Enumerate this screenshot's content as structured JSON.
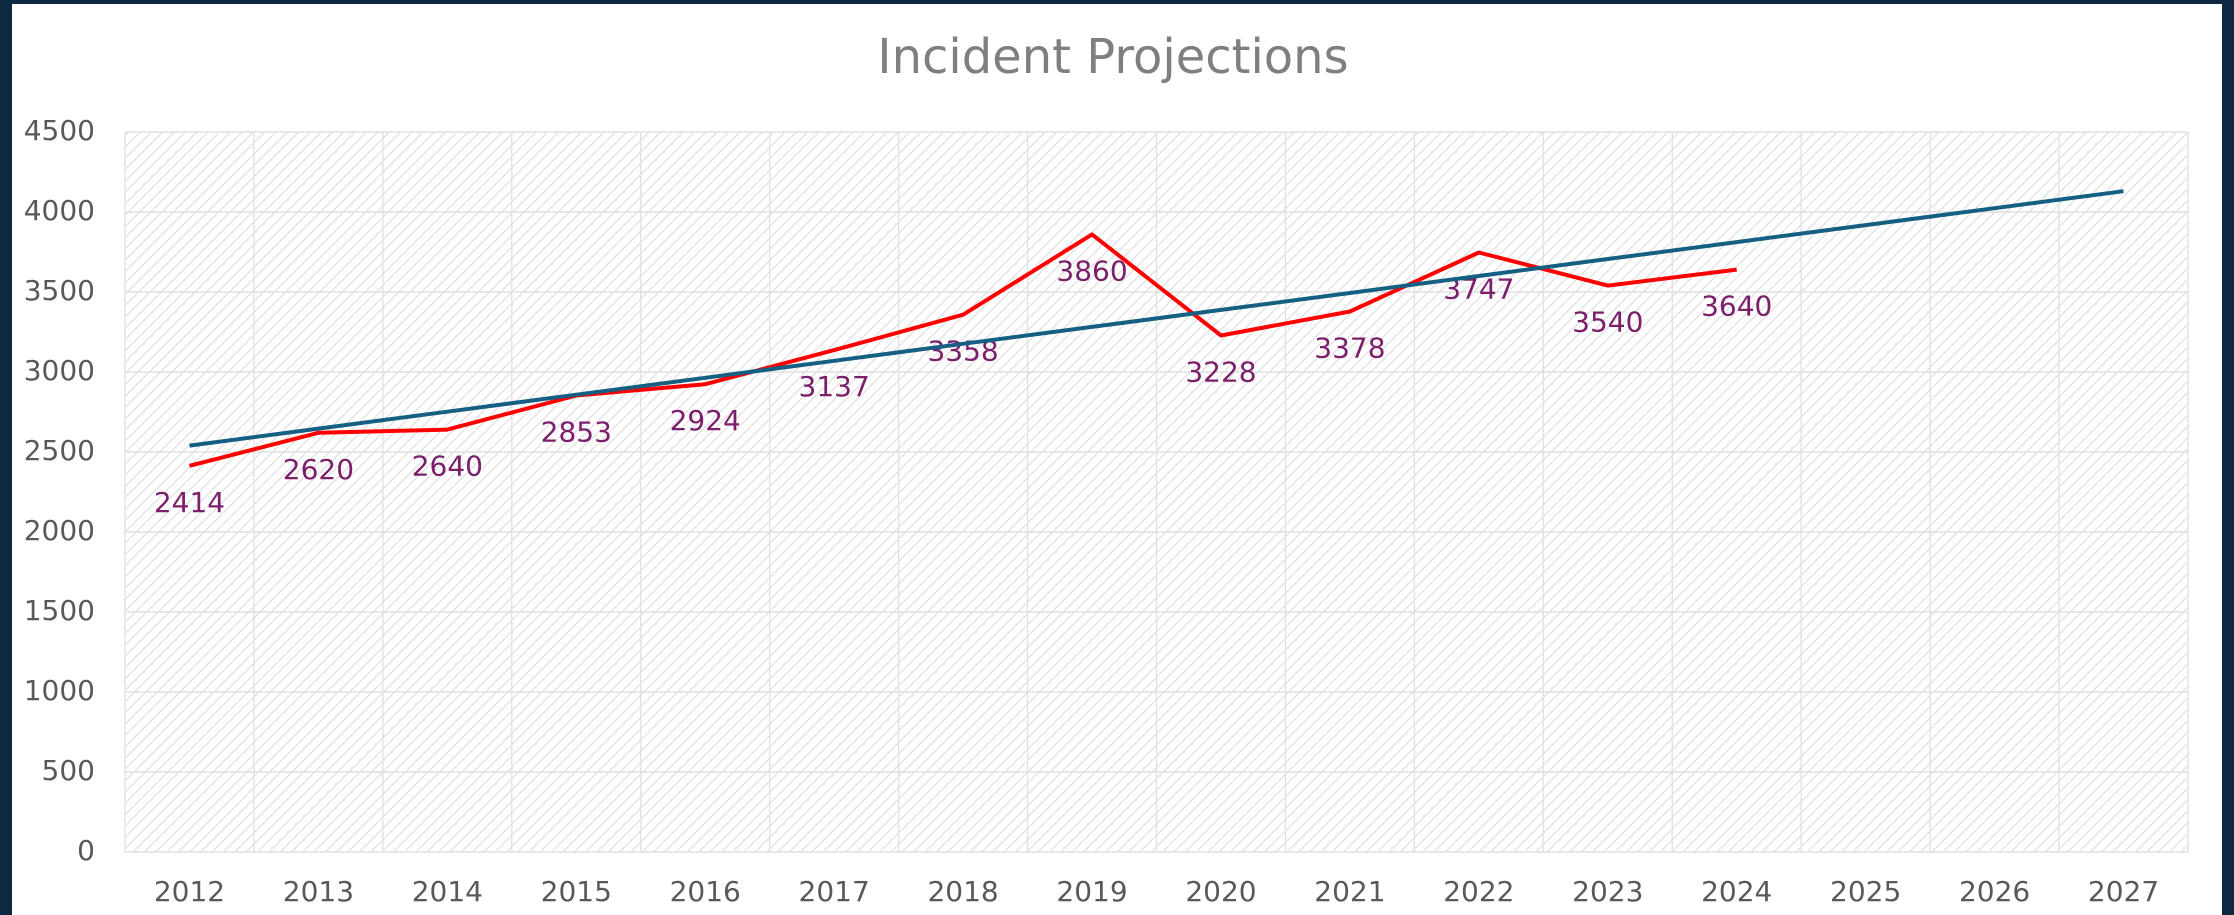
{
  "chart_data": {
    "type": "line",
    "title": "Incident Projections",
    "categories": [
      "2012",
      "2013",
      "2014",
      "2015",
      "2016",
      "2017",
      "2018",
      "2019",
      "2020",
      "2021",
      "2022",
      "2023",
      "2024",
      "2025",
      "2026",
      "2027"
    ],
    "series": [
      {
        "color": "#ff0000",
        "values": [
          2414,
          2620,
          2640,
          2853,
          2924,
          3137,
          3358,
          3860,
          3228,
          3378,
          3747,
          3540,
          3640,
          null,
          null,
          null
        ],
        "labels_shown": true
      },
      {
        "color": "#156082",
        "values": [
          2540,
          2646,
          2752,
          2858,
          2964,
          3070,
          3176,
          3282,
          3388,
          3494,
          3600,
          3706,
          3812,
          3918,
          4024,
          4130
        ]
      }
    ],
    "label_color": "#7b1f6a",
    "ylim": [
      0,
      4500
    ],
    "yticks": [
      0,
      500,
      1000,
      1500,
      2000,
      2500,
      3000,
      3500,
      4000,
      4500
    ],
    "grid": true
  }
}
